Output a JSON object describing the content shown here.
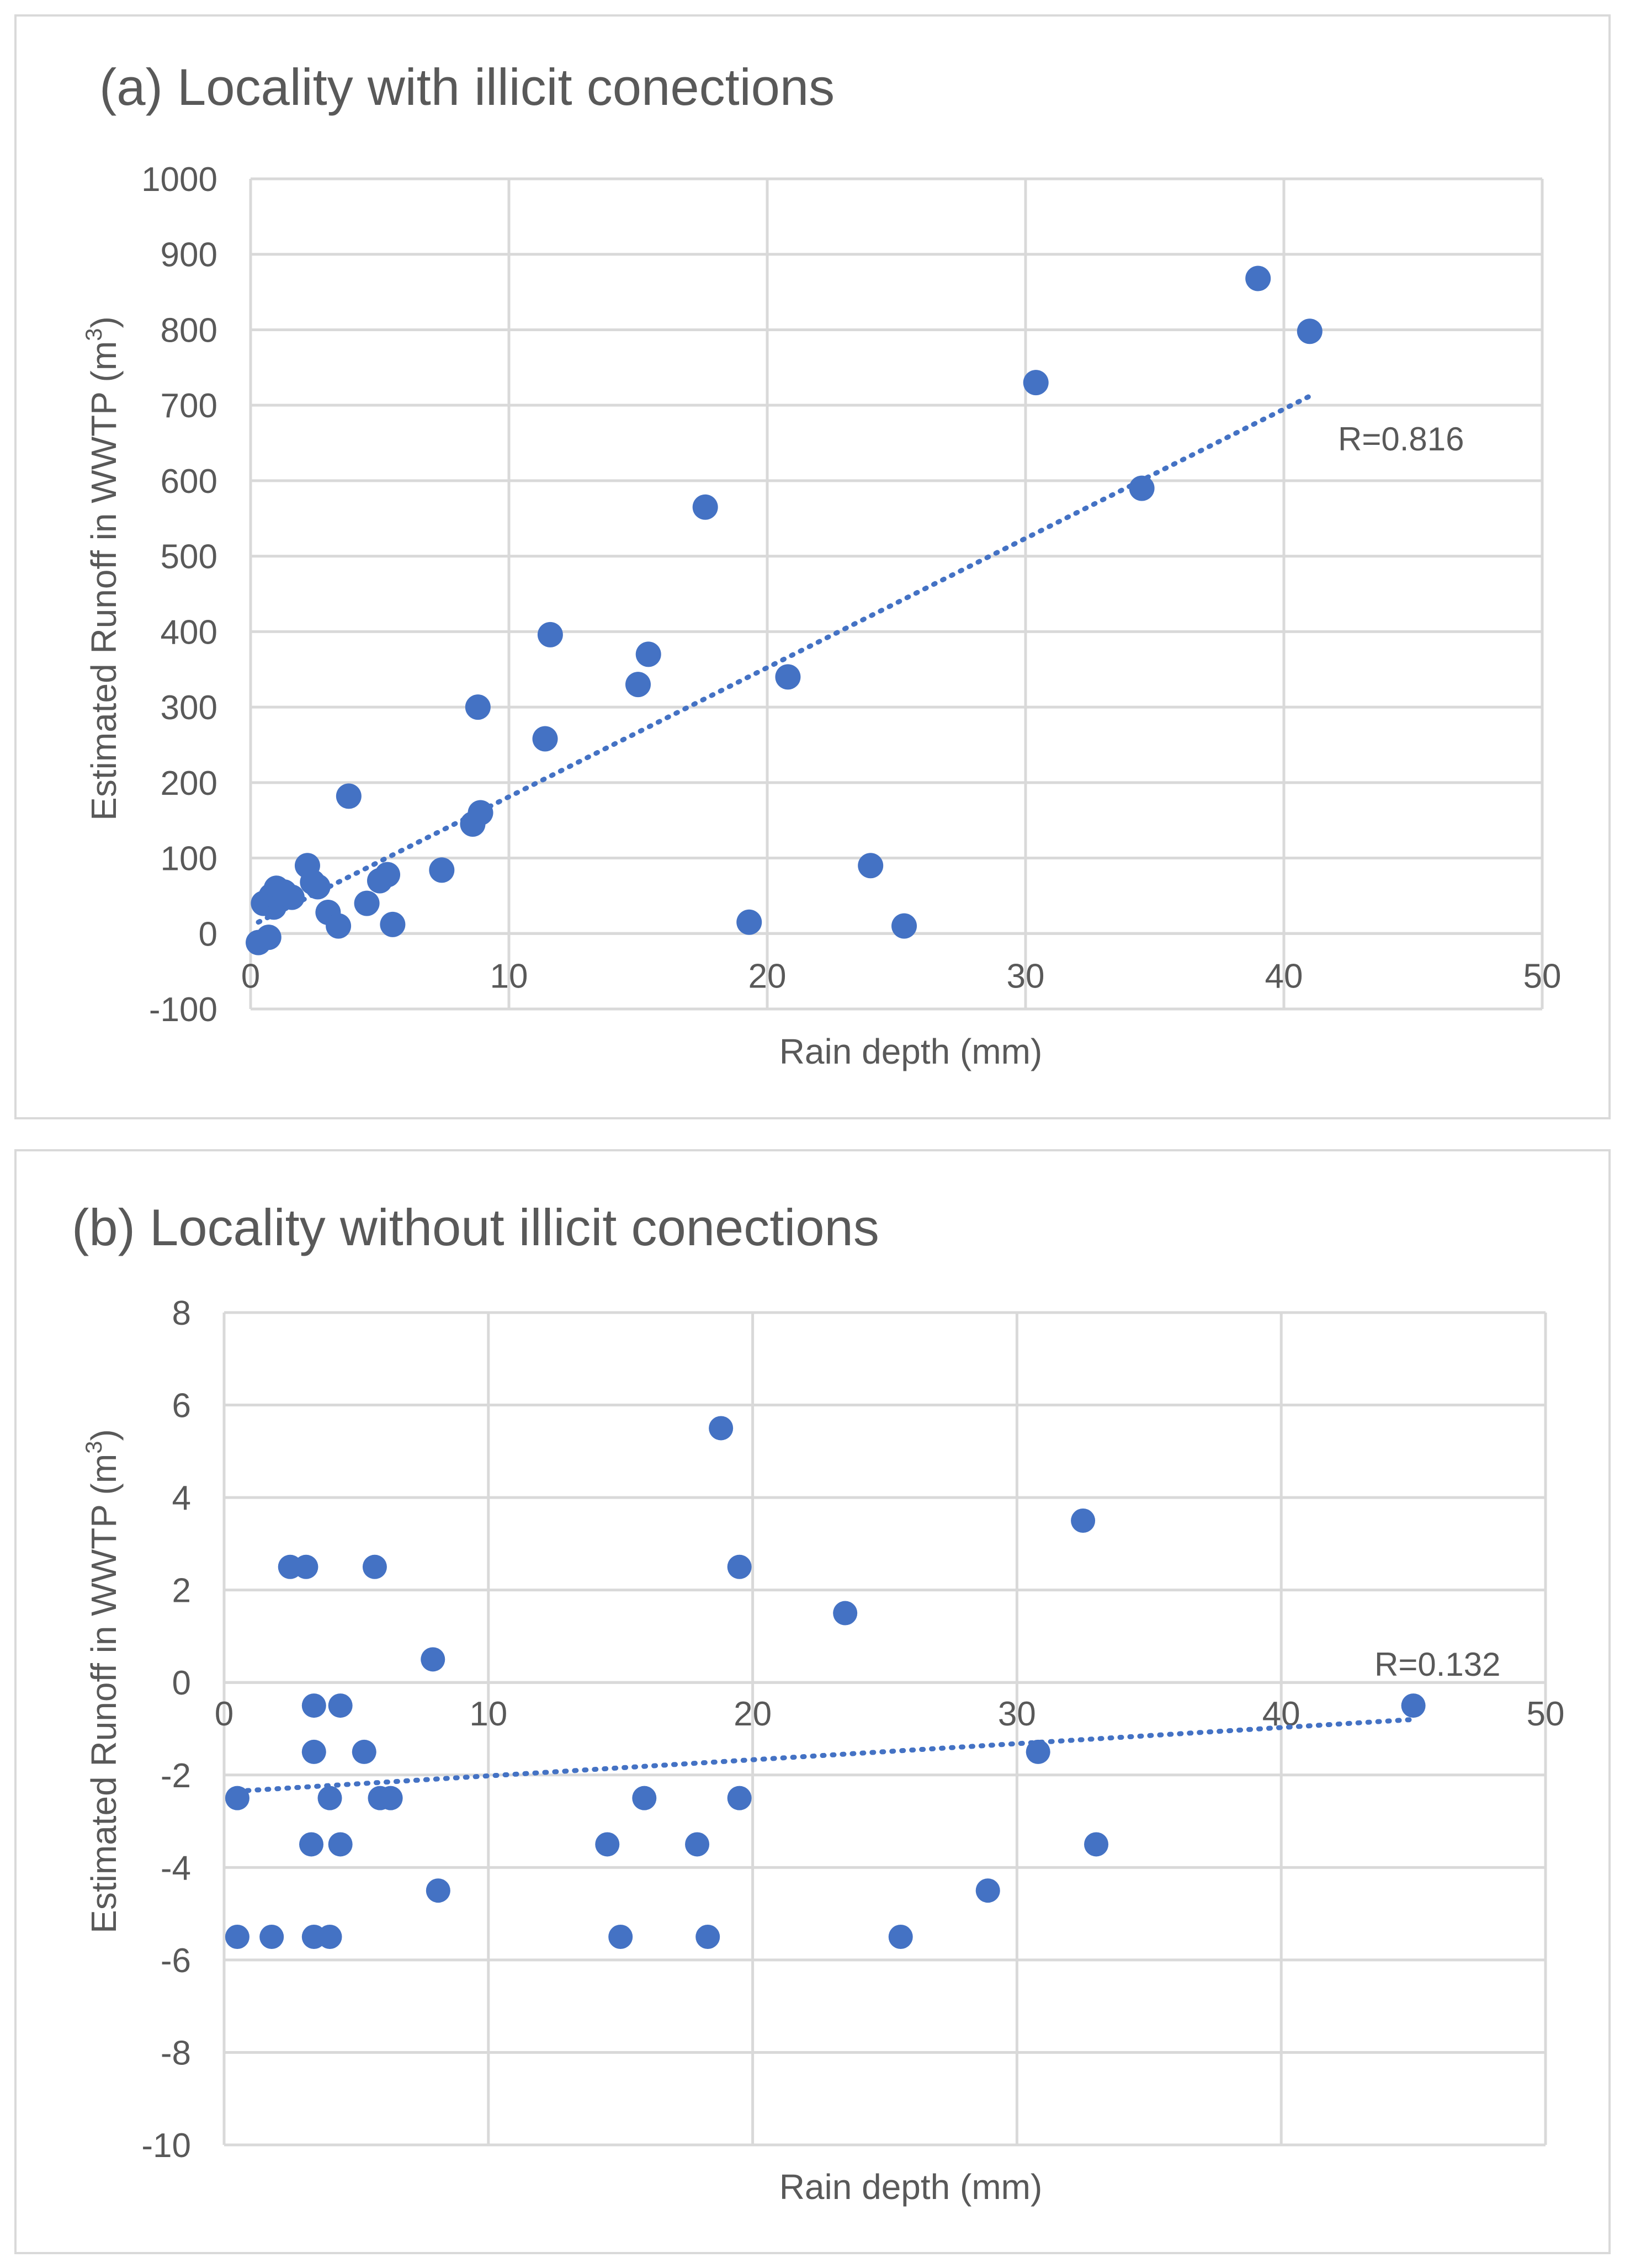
{
  "colors": {
    "point": "#4472C4",
    "trend": "#4472C4"
  },
  "chart_data": [
    {
      "type": "scatter",
      "title": "(a) Locality with illicit conections",
      "xlabel": "Rain depth (mm)",
      "ylabel_main": "Estimated Runoff in WWTP (m",
      "ylabel_sup": "3",
      "ylabel_end": ")",
      "xlim": [
        0,
        50
      ],
      "ylim": [
        -100,
        1000
      ],
      "xticks": [
        0,
        10,
        20,
        30,
        40,
        50
      ],
      "yticks": [
        -100,
        0,
        100,
        200,
        300,
        400,
        500,
        600,
        700,
        800,
        900,
        1000
      ],
      "grid": true,
      "trendline": {
        "label": "R=0.816",
        "x": [
          0.3,
          41
        ],
        "y": [
          15,
          712
        ]
      },
      "points": [
        {
          "x": 0.3,
          "y": -12
        },
        {
          "x": 0.5,
          "y": 40
        },
        {
          "x": 0.7,
          "y": -5
        },
        {
          "x": 0.8,
          "y": 50
        },
        {
          "x": 0.9,
          "y": 35
        },
        {
          "x": 1.0,
          "y": 60
        },
        {
          "x": 1.1,
          "y": 45
        },
        {
          "x": 1.3,
          "y": 55
        },
        {
          "x": 1.6,
          "y": 48
        },
        {
          "x": 2.2,
          "y": 90
        },
        {
          "x": 2.4,
          "y": 68
        },
        {
          "x": 2.6,
          "y": 62
        },
        {
          "x": 3.0,
          "y": 28
        },
        {
          "x": 3.4,
          "y": 10
        },
        {
          "x": 3.8,
          "y": 182
        },
        {
          "x": 4.5,
          "y": 40
        },
        {
          "x": 5.0,
          "y": 70
        },
        {
          "x": 5.3,
          "y": 78
        },
        {
          "x": 5.5,
          "y": 12
        },
        {
          "x": 7.4,
          "y": 84
        },
        {
          "x": 8.6,
          "y": 145
        },
        {
          "x": 8.8,
          "y": 300
        },
        {
          "x": 8.9,
          "y": 160
        },
        {
          "x": 11.4,
          "y": 258
        },
        {
          "x": 11.6,
          "y": 396
        },
        {
          "x": 15.0,
          "y": 330
        },
        {
          "x": 15.4,
          "y": 370
        },
        {
          "x": 17.6,
          "y": 565
        },
        {
          "x": 19.3,
          "y": 15
        },
        {
          "x": 20.8,
          "y": 340
        },
        {
          "x": 24.0,
          "y": 90
        },
        {
          "x": 25.3,
          "y": 10
        },
        {
          "x": 30.4,
          "y": 730
        },
        {
          "x": 34.5,
          "y": 590
        },
        {
          "x": 39.0,
          "y": 868
        },
        {
          "x": 41.0,
          "y": 798
        }
      ]
    },
    {
      "type": "scatter",
      "title": "(b) Locality without illicit conections",
      "xlabel": "Rain depth (mm)",
      "ylabel_main": "Estimated Runoff in WWTP (m",
      "ylabel_sup": "3",
      "ylabel_end": ")",
      "xlim": [
        0,
        50
      ],
      "ylim": [
        -10,
        8
      ],
      "xticks": [
        0,
        10,
        20,
        30,
        40,
        50
      ],
      "yticks": [
        -10,
        -8,
        -6,
        -4,
        -2,
        0,
        2,
        4,
        6,
        8
      ],
      "grid": true,
      "trendline": {
        "label": "R=0.132",
        "x": [
          0.5,
          45
        ],
        "y": [
          -2.35,
          -0.8
        ]
      },
      "points": [
        {
          "x": 0.5,
          "y": -2.5
        },
        {
          "x": 0.5,
          "y": -5.5
        },
        {
          "x": 1.8,
          "y": -5.5
        },
        {
          "x": 2.5,
          "y": 2.5
        },
        {
          "x": 3.1,
          "y": 2.5
        },
        {
          "x": 3.3,
          "y": -3.5
        },
        {
          "x": 3.4,
          "y": -0.5
        },
        {
          "x": 3.4,
          "y": -1.5
        },
        {
          "x": 3.4,
          "y": -5.5
        },
        {
          "x": 4.0,
          "y": -2.5
        },
        {
          "x": 4.0,
          "y": -5.5
        },
        {
          "x": 4.4,
          "y": -0.5
        },
        {
          "x": 4.4,
          "y": -3.5
        },
        {
          "x": 5.3,
          "y": -1.5
        },
        {
          "x": 5.7,
          "y": 2.5
        },
        {
          "x": 5.9,
          "y": -2.5
        },
        {
          "x": 6.3,
          "y": -2.5
        },
        {
          "x": 7.9,
          "y": 0.5
        },
        {
          "x": 8.1,
          "y": -4.5
        },
        {
          "x": 14.5,
          "y": -3.5
        },
        {
          "x": 15.0,
          "y": -5.5
        },
        {
          "x": 15.9,
          "y": -2.5
        },
        {
          "x": 17.9,
          "y": -3.5
        },
        {
          "x": 18.3,
          "y": -5.5
        },
        {
          "x": 18.8,
          "y": 5.5
        },
        {
          "x": 19.5,
          "y": 2.5
        },
        {
          "x": 19.5,
          "y": -2.5
        },
        {
          "x": 23.5,
          "y": 1.5
        },
        {
          "x": 25.6,
          "y": -5.5
        },
        {
          "x": 28.9,
          "y": -4.5
        },
        {
          "x": 30.8,
          "y": -1.5
        },
        {
          "x": 32.5,
          "y": 3.5
        },
        {
          "x": 33.0,
          "y": -3.5
        },
        {
          "x": 45.0,
          "y": -0.5
        }
      ]
    }
  ]
}
